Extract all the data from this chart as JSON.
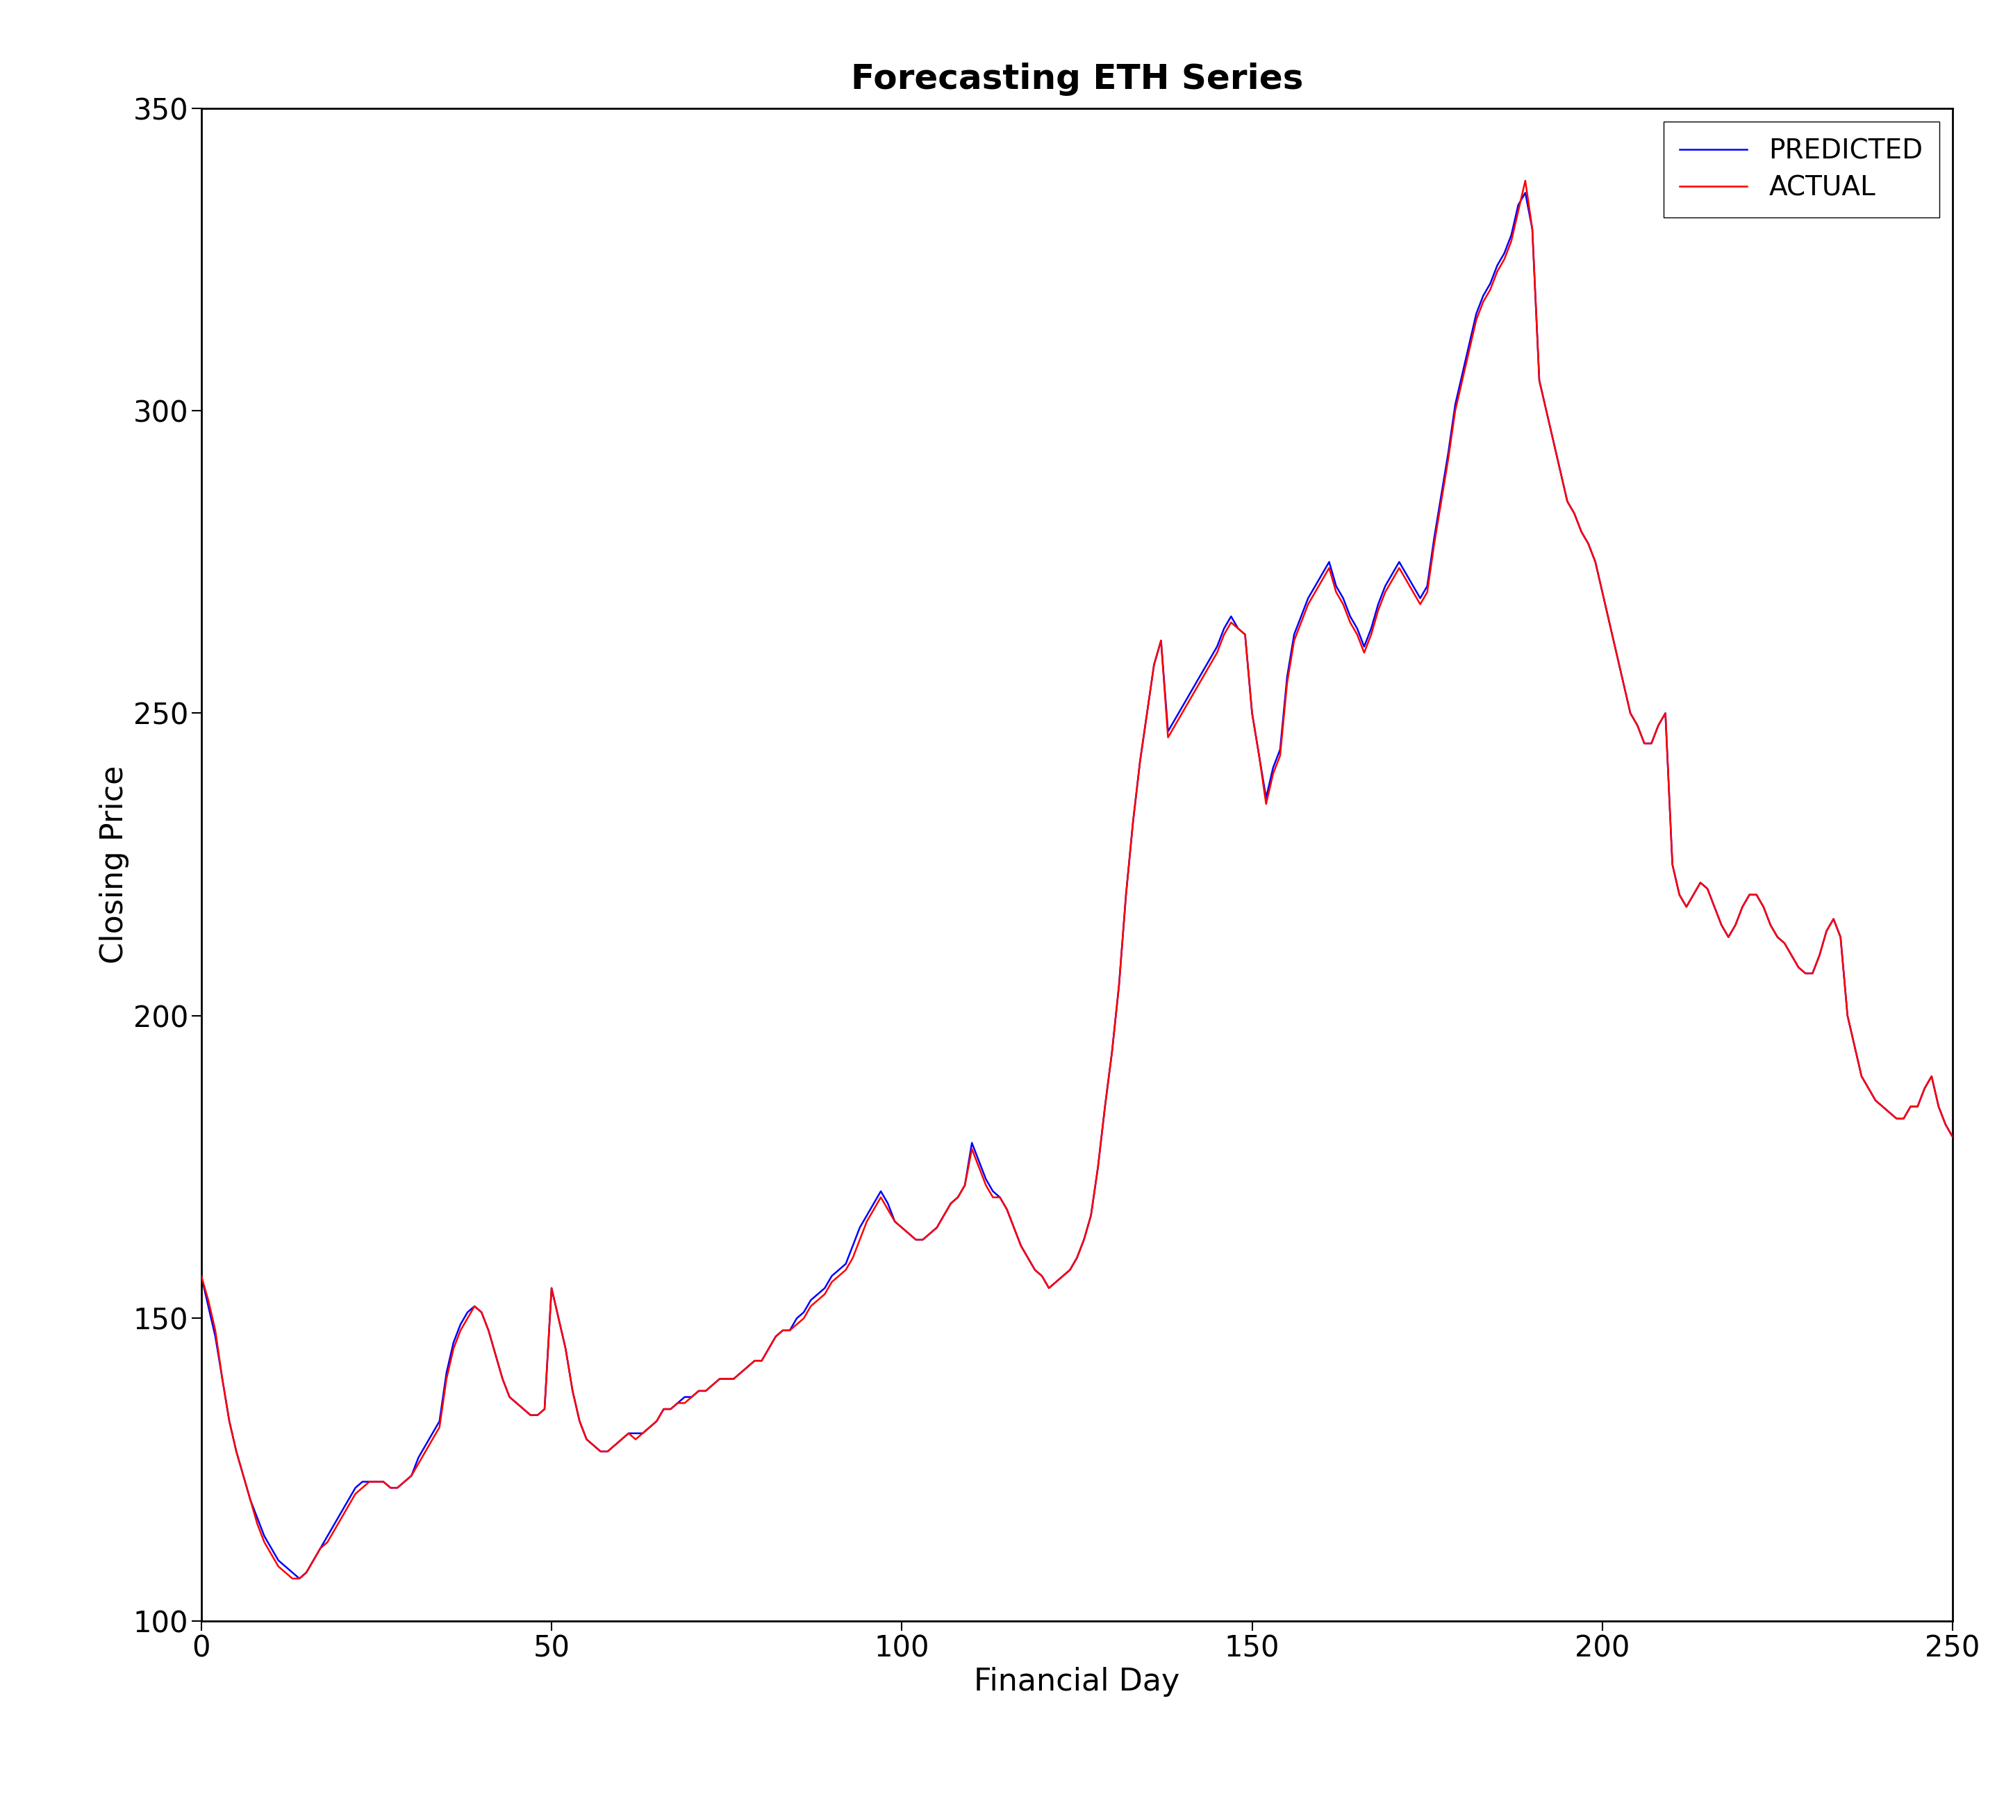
{
  "title": "Forecasting ETH Series",
  "xlabel": "Financial Day",
  "ylabel": "Closing Price",
  "xlim": [
    0,
    250
  ],
  "ylim": [
    100,
    350
  ],
  "xticks": [
    0,
    50,
    100,
    150,
    200,
    250
  ],
  "yticks": [
    100,
    150,
    200,
    250,
    300,
    350
  ],
  "predicted_color": "#0000FF",
  "actual_color": "#FF0000",
  "line_width": 1.8,
  "background_color": "#FFFFFF",
  "legend_labels": [
    "PREDICTED",
    "ACTUAL"
  ],
  "title_fontsize": 36,
  "label_fontsize": 32,
  "tick_fontsize": 30,
  "legend_fontsize": 28,
  "actual_y": [
    157,
    153,
    148,
    140,
    133,
    128,
    124,
    120,
    116,
    113,
    111,
    109,
    108,
    107,
    107,
    108,
    110,
    112,
    113,
    115,
    117,
    119,
    121,
    122,
    123,
    123,
    123,
    122,
    122,
    123,
    124,
    126,
    128,
    130,
    132,
    140,
    145,
    148,
    150,
    152,
    151,
    148,
    144,
    140,
    137,
    136,
    135,
    134,
    134,
    135,
    155,
    150,
    145,
    138,
    133,
    130,
    129,
    128,
    128,
    129,
    130,
    131,
    130,
    131,
    132,
    133,
    135,
    135,
    136,
    136,
    137,
    138,
    138,
    139,
    140,
    140,
    140,
    141,
    142,
    143,
    143,
    145,
    147,
    148,
    148,
    149,
    150,
    152,
    153,
    154,
    156,
    157,
    158,
    160,
    163,
    166,
    168,
    170,
    168,
    166,
    165,
    164,
    163,
    163,
    164,
    165,
    167,
    169,
    170,
    172,
    178,
    175,
    172,
    170,
    170,
    168,
    165,
    162,
    160,
    158,
    157,
    155,
    156,
    157,
    158,
    160,
    163,
    167,
    175,
    185,
    194,
    205,
    220,
    232,
    242,
    250,
    258,
    262,
    246,
    248,
    250,
    252,
    254,
    256,
    258,
    260,
    263,
    265,
    264,
    263,
    250,
    243,
    235,
    240,
    243,
    255,
    262,
    265,
    268,
    270,
    272,
    274,
    270,
    268,
    265,
    263,
    260,
    263,
    267,
    270,
    272,
    274,
    272,
    270,
    268,
    270,
    278,
    285,
    292,
    300,
    305,
    310,
    315,
    318,
    320,
    323,
    325,
    328,
    333,
    338,
    330,
    305,
    300,
    295,
    290,
    285,
    283,
    280,
    278,
    275,
    270,
    265,
    260,
    255,
    250,
    248,
    245,
    245,
    248,
    250,
    225,
    220,
    218,
    220,
    222,
    221,
    218,
    215,
    213,
    215,
    218,
    220,
    220,
    218,
    215,
    213,
    212,
    210,
    208,
    207,
    207,
    210,
    214,
    216,
    213,
    200,
    195,
    190,
    188,
    186,
    185,
    184,
    183,
    183,
    185,
    185,
    188,
    190,
    185,
    182,
    180
  ],
  "predicted_y": [
    157,
    152,
    147,
    140,
    133,
    128,
    124,
    120,
    117,
    114,
    112,
    110,
    109,
    108,
    107,
    108,
    110,
    112,
    114,
    116,
    118,
    120,
    122,
    123,
    123,
    123,
    123,
    122,
    122,
    123,
    124,
    127,
    129,
    131,
    133,
    141,
    146,
    149,
    151,
    152,
    151,
    148,
    144,
    140,
    137,
    136,
    135,
    134,
    134,
    135,
    155,
    150,
    145,
    138,
    133,
    130,
    129,
    128,
    128,
    129,
    130,
    131,
    131,
    131,
    132,
    133,
    135,
    135,
    136,
    137,
    137,
    138,
    138,
    139,
    140,
    140,
    140,
    141,
    142,
    143,
    143,
    145,
    147,
    148,
    148,
    150,
    151,
    153,
    154,
    155,
    157,
    158,
    159,
    162,
    165,
    167,
    169,
    171,
    169,
    166,
    165,
    164,
    163,
    163,
    164,
    165,
    167,
    169,
    170,
    172,
    179,
    176,
    173,
    171,
    170,
    168,
    165,
    162,
    160,
    158,
    157,
    155,
    156,
    157,
    158,
    160,
    163,
    167,
    175,
    185,
    194,
    205,
    220,
    232,
    242,
    250,
    258,
    262,
    247,
    249,
    251,
    253,
    255,
    257,
    259,
    261,
    264,
    266,
    264,
    263,
    250,
    243,
    236,
    241,
    244,
    256,
    263,
    266,
    269,
    271,
    273,
    275,
    271,
    269,
    266,
    264,
    261,
    264,
    268,
    271,
    273,
    275,
    273,
    271,
    269,
    271,
    279,
    286,
    293,
    301,
    306,
    311,
    316,
    319,
    321,
    324,
    326,
    329,
    334,
    336,
    330,
    305,
    300,
    295,
    290,
    285,
    283,
    280,
    278,
    275,
    270,
    265,
    260,
    255,
    250,
    248,
    245,
    245,
    248,
    250,
    225,
    220,
    218,
    220,
    222,
    221,
    218,
    215,
    213,
    215,
    218,
    220,
    220,
    218,
    215,
    213,
    212,
    210,
    208,
    207,
    207,
    210,
    214,
    216,
    213,
    200,
    195,
    190,
    188,
    186,
    185,
    184,
    183,
    183,
    185,
    185,
    188,
    190,
    185,
    182,
    180
  ]
}
